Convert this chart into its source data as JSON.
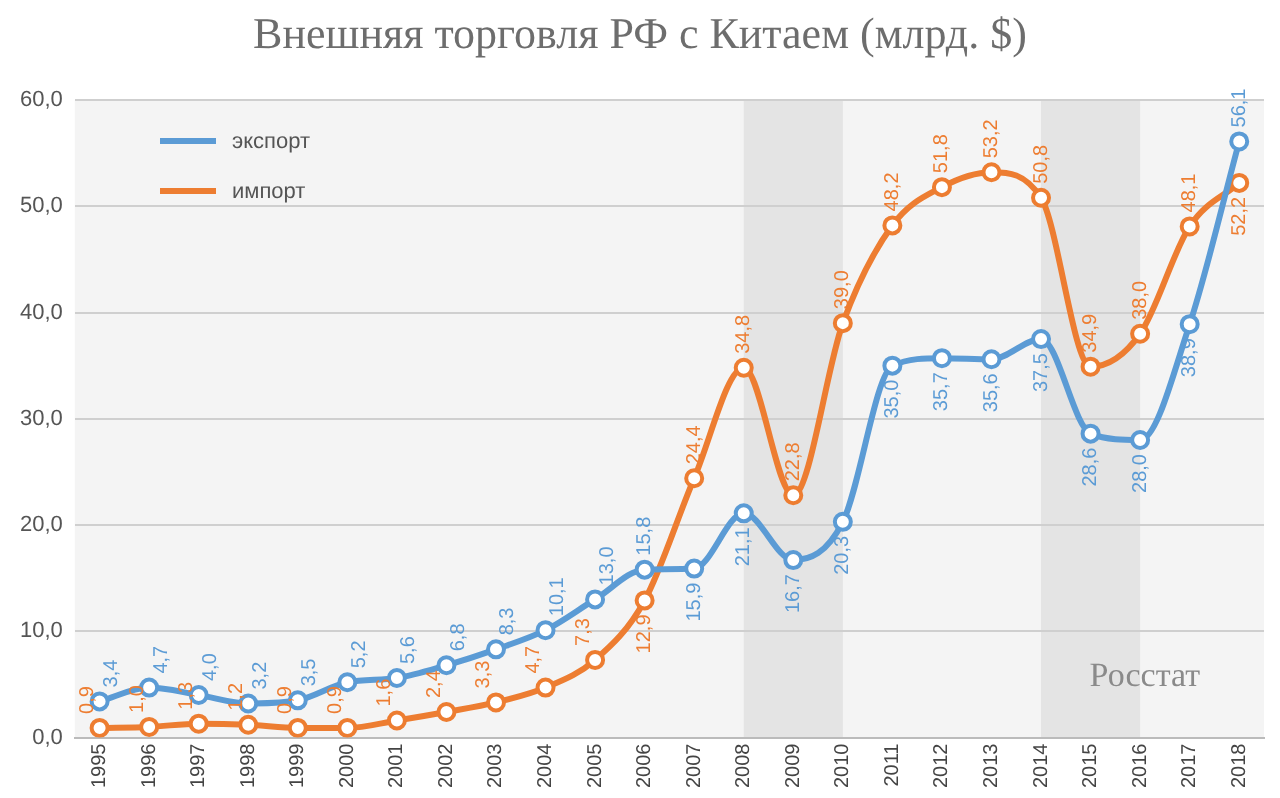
{
  "chart_data": {
    "type": "line",
    "title": "Внешняя торговля РФ с Китаем (млрд. $)",
    "categories": [
      "1995",
      "1996",
      "1997",
      "1998",
      "1999",
      "2000",
      "2001",
      "2002",
      "2003",
      "2004",
      "2005",
      "2006",
      "2007",
      "2008",
      "2009",
      "2010",
      "2011",
      "2012",
      "2013",
      "2014",
      "2015",
      "2016",
      "2017",
      "2018"
    ],
    "series": [
      {
        "name": "экспорт",
        "color": "#5b9bd5",
        "values": [
          3.4,
          4.7,
          4.0,
          3.2,
          3.5,
          5.2,
          5.6,
          6.8,
          8.3,
          10.1,
          13.0,
          15.8,
          15.9,
          21.1,
          16.7,
          20.3,
          35.0,
          35.7,
          35.6,
          37.5,
          28.6,
          28.0,
          38.9,
          56.1
        ],
        "value_labels": [
          "3,4",
          "4,7",
          "4,0",
          "3,2",
          "3,5",
          "5,2",
          "5,6",
          "6,8",
          "8,3",
          "10,1",
          "13,0",
          "15,8",
          "15,9",
          "21,1",
          "16,7",
          "20,3",
          "35,0",
          "35,7",
          "35,6",
          "37,5",
          "28,6",
          "28,0",
          "38,9",
          "56,1"
        ]
      },
      {
        "name": "импорт",
        "color": "#ed7d31",
        "values": [
          0.9,
          1.0,
          1.3,
          1.2,
          0.9,
          0.9,
          1.6,
          2.4,
          3.3,
          4.7,
          7.3,
          12.9,
          24.4,
          34.8,
          22.8,
          39.0,
          48.2,
          51.8,
          53.2,
          50.8,
          34.9,
          38.0,
          48.1,
          52.2
        ],
        "value_labels": [
          "0,9",
          "1,0",
          "1,3",
          "1,2",
          "0,9",
          "0,9",
          "1,6",
          "2,4",
          "3,3",
          "4,7",
          "7,3",
          "12,9",
          "24,4",
          "34,8",
          "22,8",
          "39,0",
          "48,2",
          "51,8",
          "53,2",
          "50,8",
          "34,9",
          "38,0",
          "48,1",
          "52,2"
        ]
      }
    ],
    "ylim": [
      0,
      60
    ],
    "yticks": [
      {
        "value": 0,
        "label": "0,0"
      },
      {
        "value": 10,
        "label": "10,0"
      },
      {
        "value": 20,
        "label": "20,0"
      },
      {
        "value": 30,
        "label": "30,0"
      },
      {
        "value": 40,
        "label": "40,0"
      },
      {
        "value": 50,
        "label": "50,0"
      },
      {
        "value": 60,
        "label": "60,0"
      }
    ],
    "bands": [
      {
        "axis": "x",
        "from": "2008",
        "to": "2010",
        "color": "#e4e4e4"
      },
      {
        "axis": "x",
        "from": "2014",
        "to": "2016",
        "color": "#e4e4e4"
      }
    ],
    "grid": "y",
    "legend": "top left",
    "marker": "circle",
    "line_style": "solid",
    "annotations": [
      "Росстат"
    ]
  }
}
